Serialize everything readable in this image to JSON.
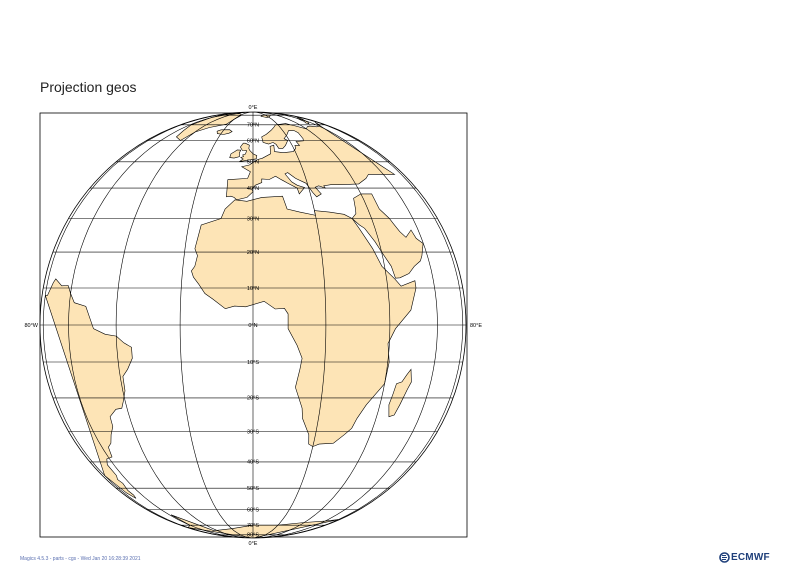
{
  "title": "Projection geos",
  "map": {
    "projection": "geostationary",
    "land_color": "#fde4b6",
    "coast_color": "#000000",
    "grid_color": "#000000",
    "lon_labels": {
      "top": "0°E",
      "bottom": "0°E",
      "left": "80°W",
      "right": "80°E"
    },
    "lat_labels": [
      {
        "lat": 70,
        "text": "70°N"
      },
      {
        "lat": 60,
        "text": "60°N"
      },
      {
        "lat": 50,
        "text": "50°N"
      },
      {
        "lat": 40,
        "text": "40°N"
      },
      {
        "lat": 30,
        "text": "30°N"
      },
      {
        "lat": 20,
        "text": "20°N"
      },
      {
        "lat": 10,
        "text": "10°N"
      },
      {
        "lat": 0,
        "text": "0°N"
      },
      {
        "lat": -10,
        "text": "10°S"
      },
      {
        "lat": -20,
        "text": "20°S"
      },
      {
        "lat": -30,
        "text": "30°S"
      },
      {
        "lat": -40,
        "text": "40°S"
      },
      {
        "lat": -50,
        "text": "50°S"
      },
      {
        "lat": -60,
        "text": "60°S"
      },
      {
        "lat": -70,
        "text": "70°S"
      },
      {
        "lat": -80,
        "text": "80°S"
      }
    ]
  },
  "footer": {
    "text": "Magics 4.5.3 - parts - cgs - Wed Jan 20 16:28:39 2021",
    "logo_text": "ECMWF",
    "logo_icon": "ecmwf-logo-icon"
  }
}
